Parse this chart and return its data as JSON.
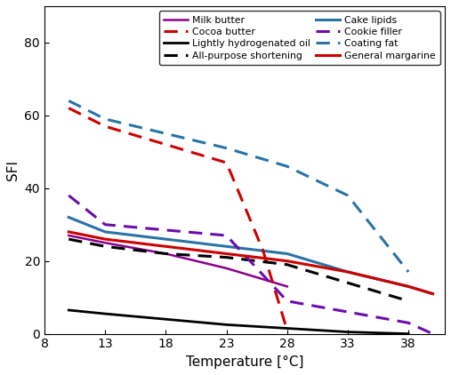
{
  "xlabel": "Temperature [°C]",
  "ylabel": "SFI",
  "series": [
    {
      "label": "Milk butter",
      "color": "#8B008B",
      "ls": "-",
      "lw": 1.8,
      "x": [
        10,
        13,
        18,
        23,
        28,
        33,
        38,
        40
      ],
      "y": [
        27,
        25,
        22,
        18,
        13,
        null,
        null,
        null
      ]
    },
    {
      "label": "Lightly hydrogenated oil",
      "color": "#000000",
      "ls": "-",
      "lw": 2.0,
      "x": [
        10,
        13,
        18,
        23,
        28,
        33,
        38
      ],
      "y": [
        6.5,
        5.5,
        4.0,
        2.5,
        1.5,
        0.5,
        0.0
      ]
    },
    {
      "label": "Cake lipids",
      "color": "#2874A6",
      "ls": "-",
      "lw": 2.2,
      "x": [
        10,
        13,
        18,
        23,
        28,
        33,
        38,
        40
      ],
      "y": [
        32,
        28,
        26,
        24,
        22,
        17,
        13,
        11
      ]
    },
    {
      "label": "Coating fat",
      "color": "#2874A6",
      "ls": "--",
      "lw": 2.2,
      "x": [
        10,
        13,
        18,
        23,
        28,
        33,
        38,
        40
      ],
      "y": [
        64,
        59,
        55,
        51,
        46,
        38,
        17,
        null
      ]
    },
    {
      "label": "Cocoa butter",
      "color": "#CC0000",
      "ls": "--",
      "lw": 2.2,
      "x": [
        10,
        13,
        18,
        23,
        26,
        28,
        33
      ],
      "y": [
        62,
        57,
        52,
        47,
        23,
        1,
        null
      ]
    },
    {
      "label": "All-purpose shortening",
      "color": "#000000",
      "ls": "--",
      "lw": 2.2,
      "x": [
        10,
        13,
        18,
        23,
        28,
        33,
        38,
        40
      ],
      "y": [
        26,
        24,
        22,
        21,
        19,
        14,
        9,
        null
      ]
    },
    {
      "label": "Cookie filler",
      "color": "#6A0DAD",
      "ls": "--",
      "lw": 2.2,
      "x": [
        10,
        13,
        23,
        28,
        33,
        38,
        40
      ],
      "y": [
        38,
        30,
        27,
        9,
        6,
        3,
        0
      ]
    },
    {
      "label": "General margarine",
      "color": "#CC0000",
      "ls": "-",
      "lw": 2.2,
      "x": [
        10,
        13,
        18,
        23,
        28,
        33,
        38,
        40
      ],
      "y": [
        28,
        26,
        24,
        22,
        20,
        17,
        13,
        11
      ]
    }
  ],
  "legend_order": [
    "Milk butter",
    "Cocoa butter",
    "Lightly hydrogenated oil",
    "All-purpose shortening",
    "Cake lipids",
    "Cookie filler",
    "Coating fat",
    "General margarine"
  ],
  "xlim": [
    8,
    41
  ],
  "ylim": [
    0,
    90
  ],
  "xticks": [
    8,
    13,
    18,
    23,
    28,
    33,
    38
  ],
  "xticklabels": [
    "8",
    "13",
    "18",
    "23",
    "28",
    "33",
    "38"
  ],
  "yticks": [
    0,
    20,
    40,
    60,
    80
  ],
  "background_color": "#ffffff"
}
